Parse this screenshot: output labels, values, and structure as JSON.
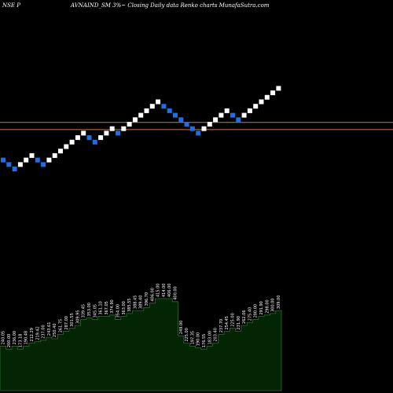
{
  "header": {
    "exchange_symbol": "NSE P",
    "caption": "AVNAIND_SM 3%~  Closing Daily data  Renko  charts MunafaSutra.com"
  },
  "colors": {
    "background": "#000000",
    "up_brick": "#ffffff",
    "down_brick": "#1e6fe6",
    "resistance_line": "#c87846",
    "volume_fill": "#032503",
    "volume_edge": "#2e6e2e"
  },
  "chart_data": {
    "type": "renko",
    "title": "",
    "bricks": [
      {
        "dir": "down",
        "level": 4
      },
      {
        "dir": "down",
        "level": 3
      },
      {
        "dir": "down",
        "level": 2
      },
      {
        "dir": "up",
        "level": 3
      },
      {
        "dir": "up",
        "level": 4
      },
      {
        "dir": "up",
        "level": 5
      },
      {
        "dir": "down",
        "level": 4
      },
      {
        "dir": "down",
        "level": 3
      },
      {
        "dir": "up",
        "level": 4
      },
      {
        "dir": "up",
        "level": 5
      },
      {
        "dir": "up",
        "level": 6
      },
      {
        "dir": "up",
        "level": 7
      },
      {
        "dir": "up",
        "level": 8
      },
      {
        "dir": "up",
        "level": 9
      },
      {
        "dir": "up",
        "level": 10
      },
      {
        "dir": "down",
        "level": 9
      },
      {
        "dir": "down",
        "level": 8
      },
      {
        "dir": "up",
        "level": 9
      },
      {
        "dir": "up",
        "level": 10
      },
      {
        "dir": "up",
        "level": 11
      },
      {
        "dir": "down",
        "level": 10
      },
      {
        "dir": "up",
        "level": 11
      },
      {
        "dir": "up",
        "level": 12
      },
      {
        "dir": "up",
        "level": 13
      },
      {
        "dir": "up",
        "level": 14
      },
      {
        "dir": "up",
        "level": 15
      },
      {
        "dir": "up",
        "level": 16
      },
      {
        "dir": "up",
        "level": 17
      },
      {
        "dir": "down",
        "level": 16
      },
      {
        "dir": "down",
        "level": 15
      },
      {
        "dir": "down",
        "level": 14
      },
      {
        "dir": "down",
        "level": 13
      },
      {
        "dir": "down",
        "level": 12
      },
      {
        "dir": "down",
        "level": 11
      },
      {
        "dir": "down",
        "level": 10
      },
      {
        "dir": "up",
        "level": 11
      },
      {
        "dir": "up",
        "level": 12
      },
      {
        "dir": "up",
        "level": 13
      },
      {
        "dir": "up",
        "level": 14
      },
      {
        "dir": "up",
        "level": 15
      },
      {
        "dir": "down",
        "level": 14
      },
      {
        "dir": "down",
        "level": 13
      },
      {
        "dir": "up",
        "level": 14
      },
      {
        "dir": "up",
        "level": 15
      },
      {
        "dir": "up",
        "level": 16
      },
      {
        "dir": "up",
        "level": 17
      },
      {
        "dir": "up",
        "level": 18
      },
      {
        "dir": "up",
        "level": 19
      },
      {
        "dir": "up",
        "level": 20
      }
    ],
    "lines": [
      12.4,
      10.8
    ],
    "volume": {
      "values": [
        150,
        140,
        150,
        140,
        150,
        160,
        165,
        170,
        180,
        175,
        190,
        200,
        210,
        220,
        240,
        245,
        240,
        250,
        250,
        255,
        240,
        250,
        260,
        270,
        270,
        280,
        295,
        310,
        310,
        310,
        300,
        185,
        160,
        150,
        145,
        140,
        150,
        160,
        190,
        200,
        210,
        200,
        220,
        230,
        240,
        250,
        255,
        260,
        270
      ],
      "labels": [
        "240.05",
        "200.00",
        "236.00",
        "173.18",
        "190.48",
        "212.29",
        "219.42",
        "237.00",
        "243.61",
        "250.40",
        "261.75",
        "287.00",
        "301.55",
        "309.95",
        "339.45",
        "353.00",
        "345.05",
        "361.10",
        "367.05",
        "374.90",
        "354.00",
        "363.00",
        "385.55",
        "388.45",
        "389.40",
        "396.70",
        "406.00",
        "415.00",
        "414.00",
        "406.00",
        "400.00",
        "249.00",
        "225.00",
        "197.35",
        "190.00",
        "176.55",
        "183.00",
        "203.40",
        "237.70",
        "254.45",
        "225.00",
        "231.90",
        "262.06",
        "275.40",
        "280.00",
        "291.90",
        "298.00",
        "300.00",
        "309.00"
      ]
    }
  }
}
